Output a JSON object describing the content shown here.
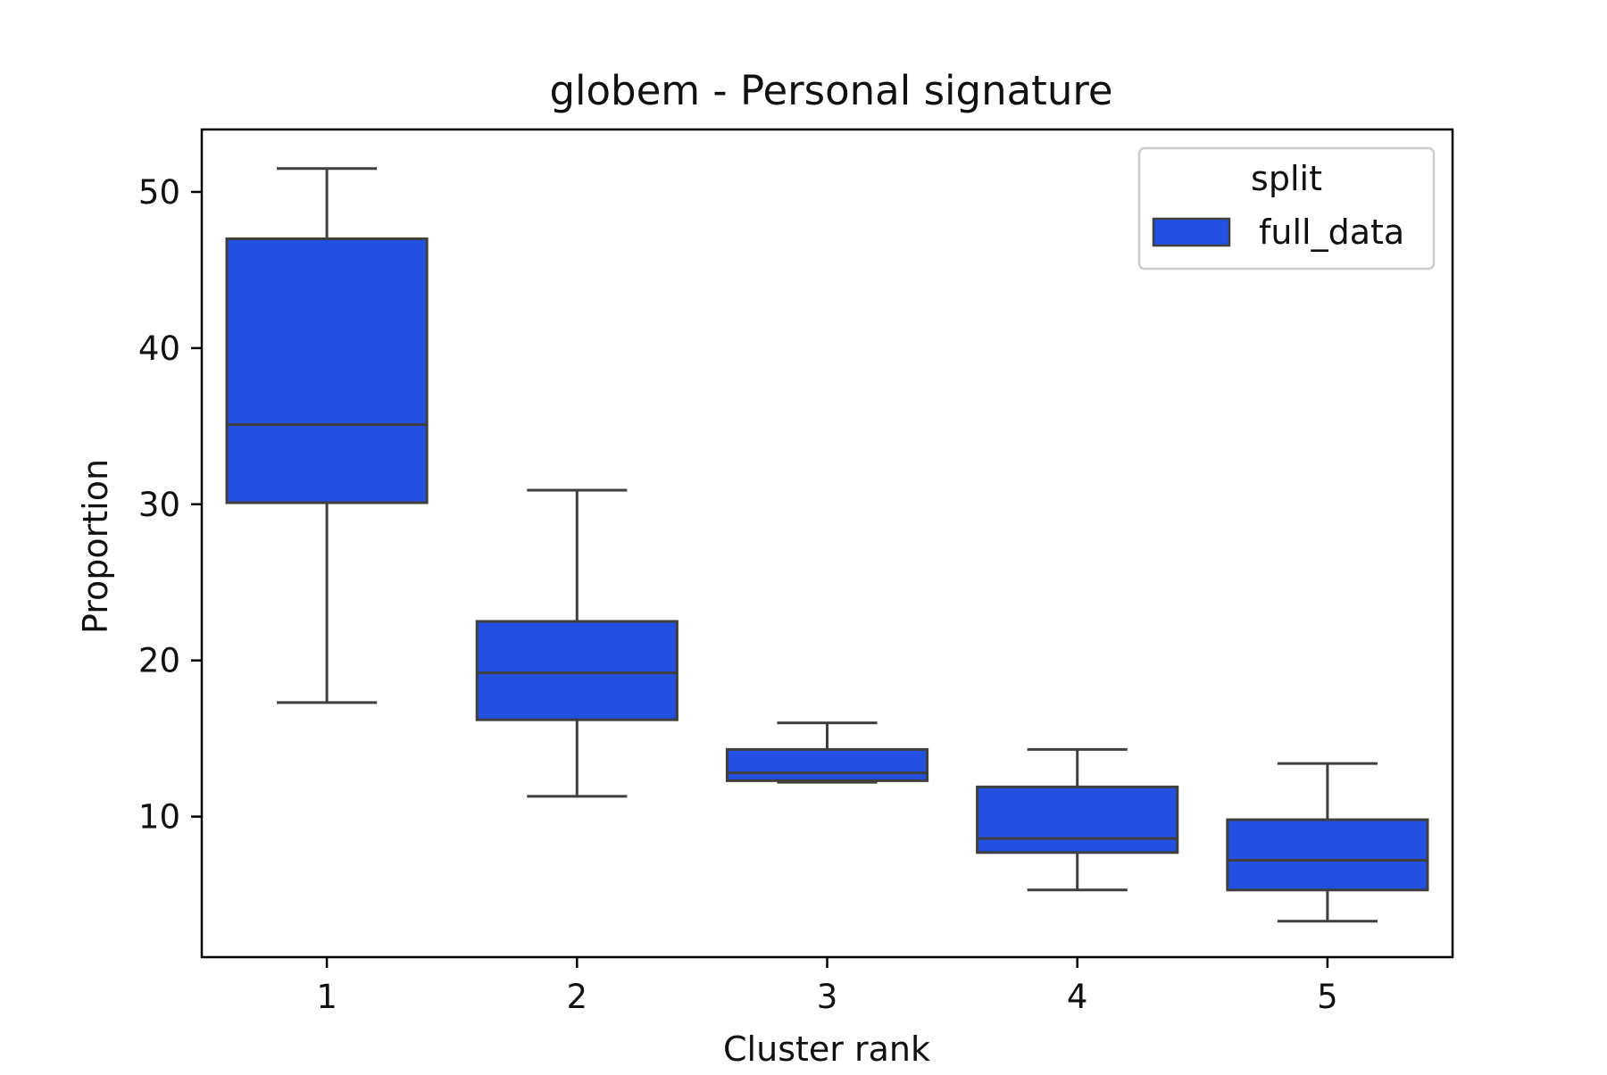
{
  "chart_data": {
    "type": "box",
    "title": "globem - Personal signature",
    "xlabel": "Cluster rank",
    "ylabel": "Proportion",
    "categories": [
      "1",
      "2",
      "3",
      "4",
      "5"
    ],
    "y_ticks": [
      "10",
      "20",
      "30",
      "40",
      "50"
    ],
    "ylim": [
      1,
      54
    ],
    "grid": false,
    "legend": {
      "title": "split",
      "placement": "top-right",
      "entries": [
        "full_data"
      ]
    },
    "series": [
      {
        "name": "full_data",
        "color": "#2350e1",
        "boxes": [
          {
            "category": "1",
            "whisker_low": 17.3,
            "q1": 30.1,
            "median": 35.1,
            "q3": 47.0,
            "whisker_high": 51.5
          },
          {
            "category": "2",
            "whisker_low": 11.3,
            "q1": 16.2,
            "median": 19.2,
            "q3": 22.5,
            "whisker_high": 30.9
          },
          {
            "category": "3",
            "whisker_low": 12.2,
            "q1": 12.3,
            "median": 12.8,
            "q3": 14.3,
            "whisker_high": 16.0
          },
          {
            "category": "4",
            "whisker_low": 5.3,
            "q1": 7.7,
            "median": 8.6,
            "q3": 11.9,
            "whisker_high": 14.3
          },
          {
            "category": "5",
            "whisker_low": 3.3,
            "q1": 5.3,
            "median": 7.2,
            "q3": 9.8,
            "whisker_high": 13.4
          }
        ]
      }
    ]
  },
  "colors": {
    "box_fill": "#2350e1",
    "box_edge": "#3f3f3f",
    "axis": "#000000",
    "background": "#ffffff"
  }
}
